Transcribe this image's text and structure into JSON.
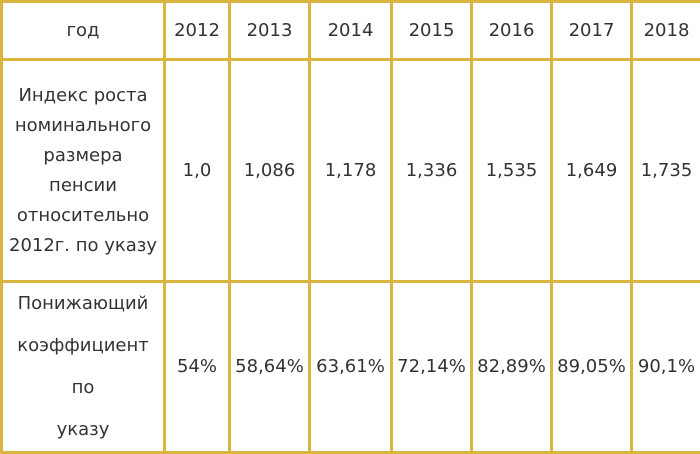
{
  "table": {
    "header": [
      "год",
      "2012",
      "2013",
      "2014",
      "2015",
      "2016",
      "2017",
      "2018"
    ],
    "rows": [
      [
        "Индекс роста номинального размера пенсии относительно 2012г. по указу",
        "1,0",
        "1,086",
        "1,178",
        "1,336",
        "1,535",
        "1,649",
        "1,735"
      ],
      [
        "Понижающий коэффициент по указу",
        "54%",
        "58,64%",
        "63,61%",
        "72,14%",
        "82,89%",
        "89,05%",
        "90,1%"
      ]
    ]
  }
}
